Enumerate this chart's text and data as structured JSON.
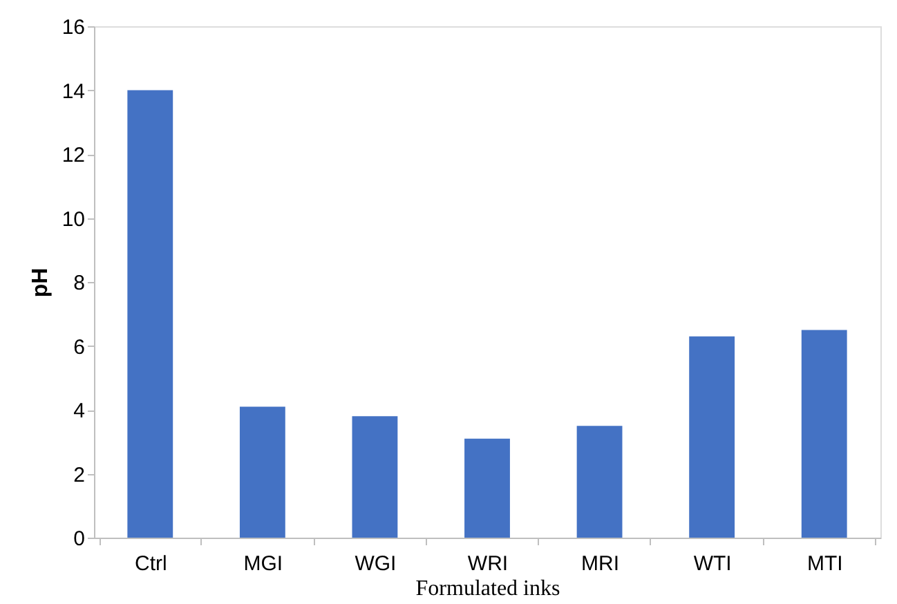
{
  "chart_data": {
    "type": "bar",
    "xlabel": "Formulated inks",
    "ylabel": "pH",
    "categories": [
      "Ctrl",
      "MGI",
      "WGI",
      "WRI",
      "MRI",
      "WTI",
      "MTI"
    ],
    "values": [
      14.0,
      4.1,
      3.8,
      3.1,
      3.5,
      6.3,
      6.5
    ],
    "color": "#4472c4",
    "ylim": [
      0,
      16
    ],
    "yticks": [
      0,
      2,
      4,
      6,
      8,
      10,
      12,
      14,
      16
    ],
    "grid": false
  }
}
